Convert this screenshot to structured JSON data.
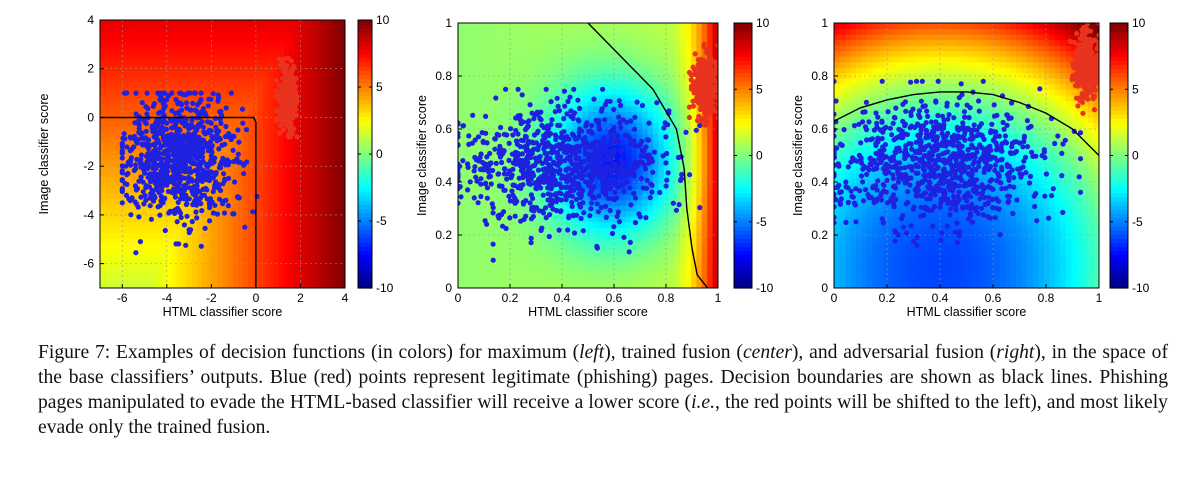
{
  "chart_data": [
    {
      "type": "scatter",
      "panel": "left",
      "xlabel": "HTML classifier score",
      "ylabel": "Image classifier score",
      "xlim": [
        -7,
        4
      ],
      "ylim": [
        -7,
        4
      ],
      "xticks": [
        "-6",
        "-4",
        "-2",
        "0",
        "2",
        "4"
      ],
      "yticks": [
        "-6",
        "-4",
        "-2",
        "0",
        "2",
        "4"
      ],
      "grid": true,
      "colorbar": {
        "ticks": [
          "-10",
          "-5",
          "0",
          "5",
          "10"
        ],
        "range": [
          -10,
          10
        ],
        "colormap": "jet"
      },
      "decision_function": "maximum",
      "boundary": [
        [
          -7,
          0
        ],
        [
          -0.1,
          0
        ],
        [
          0,
          -0.2
        ],
        [
          0,
          -7
        ]
      ],
      "series": [
        {
          "color": "#1e22e0",
          "cluster": {
            "center": [
              -3.4,
              -1.6
            ],
            "spread": [
              1.2,
              1.3
            ],
            "count": 900,
            "xrange": [
              -6,
              1
            ],
            "yrange": [
              -7,
              1
            ]
          }
        },
        {
          "color": "#e8331e",
          "cluster": {
            "center": [
              1.4,
              0.9
            ],
            "spread": [
              0.18,
              0.65
            ],
            "count": 280,
            "xrange": [
              0.9,
              2
            ],
            "yrange": [
              -0.8,
              2.5
            ]
          }
        }
      ]
    },
    {
      "type": "scatter",
      "panel": "center",
      "xlabel": "HTML classifier score",
      "ylabel": "Image classifier score",
      "xlim": [
        0,
        1
      ],
      "ylim": [
        0,
        1
      ],
      "xticks": [
        "0",
        "0.2",
        "0.4",
        "0.6",
        "0.8",
        "1"
      ],
      "yticks": [
        "0",
        "0.2",
        "0.4",
        "0.6",
        "0.8",
        "1"
      ],
      "grid": true,
      "colorbar": {
        "ticks": [
          "-10",
          "-5",
          "0",
          "5",
          "10"
        ],
        "range": [
          -10,
          10
        ],
        "colormap": "jet"
      },
      "decision_function": "trained fusion",
      "boundary": [
        [
          0.5,
          1
        ],
        [
          0.6,
          0.9
        ],
        [
          0.75,
          0.75
        ],
        [
          0.84,
          0.6
        ],
        [
          0.87,
          0.45
        ],
        [
          0.88,
          0.3
        ],
        [
          0.9,
          0.15
        ],
        [
          0.92,
          0.05
        ],
        [
          0.96,
          0
        ]
      ],
      "series": [
        {
          "color": "#1e22e0",
          "cluster": {
            "center": [
              0.4,
              0.47
            ],
            "spread": [
              0.2,
              0.11
            ],
            "count": 900,
            "xrange": [
              0,
              0.93
            ],
            "yrange": [
              0,
              0.75
            ]
          }
        },
        {
          "color": "#e8331e",
          "cluster": {
            "center": [
              0.95,
              0.76
            ],
            "spread": [
              0.025,
              0.06
            ],
            "count": 300,
            "xrange": [
              0.89,
              1
            ],
            "yrange": [
              0.55,
              1
            ]
          }
        }
      ]
    },
    {
      "type": "scatter",
      "panel": "right",
      "xlabel": "HTML classifier score",
      "ylabel": "Image classifier score",
      "xlim": [
        0,
        1
      ],
      "ylim": [
        0,
        1
      ],
      "xticks": [
        "0",
        "0.2",
        "0.4",
        "0.6",
        "0.8",
        "1"
      ],
      "yticks": [
        "0",
        "0.2",
        "0.4",
        "0.6",
        "0.8",
        "1"
      ],
      "grid": true,
      "colorbar": {
        "ticks": [
          "-10",
          "-5",
          "0",
          "5",
          "10"
        ],
        "range": [
          -10,
          10
        ],
        "colormap": "jet"
      },
      "decision_function": "adversarial fusion",
      "boundary": [
        [
          0,
          0.63
        ],
        [
          0.1,
          0.68
        ],
        [
          0.2,
          0.71
        ],
        [
          0.3,
          0.73
        ],
        [
          0.4,
          0.74
        ],
        [
          0.5,
          0.74
        ],
        [
          0.6,
          0.73
        ],
        [
          0.7,
          0.7
        ],
        [
          0.8,
          0.66
        ],
        [
          0.9,
          0.6
        ],
        [
          1,
          0.5
        ]
      ],
      "series": [
        {
          "color": "#1e22e0",
          "cluster": {
            "center": [
              0.4,
              0.48
            ],
            "spread": [
              0.2,
              0.12
            ],
            "count": 900,
            "xrange": [
              0,
              0.93
            ],
            "yrange": [
              0,
              0.78
            ]
          }
        },
        {
          "color": "#e8331e",
          "cluster": {
            "center": [
              0.95,
              0.84
            ],
            "spread": [
              0.025,
              0.06
            ],
            "count": 280,
            "xrange": [
              0.89,
              1
            ],
            "yrange": [
              0.65,
              1
            ]
          }
        }
      ]
    }
  ],
  "caption": {
    "parts": [
      {
        "t": "Figure 7: Examples of decision functions (in colors) for maximum (",
        "i": false
      },
      {
        "t": "left",
        "i": true
      },
      {
        "t": "), trained fusion (",
        "i": false
      },
      {
        "t": "center",
        "i": true
      },
      {
        "t": "), and adversarial fusion (",
        "i": false
      },
      {
        "t": "right",
        "i": true
      },
      {
        "t": "), in the space of the base classifiers’ outputs. Blue (red) points represent legitimate (phishing) pages. Decision boundaries are shown as black lines. Phishing pages manipulated to evade the HTML-based classifier will receive a lower score (",
        "i": false
      },
      {
        "t": "i.e.",
        "i": true
      },
      {
        "t": ", the red points will be shifted to the left), and most likely evade only the trained fusion.",
        "i": false
      }
    ]
  }
}
